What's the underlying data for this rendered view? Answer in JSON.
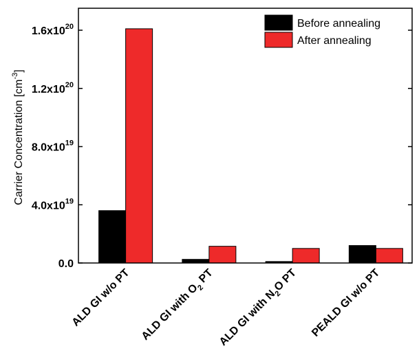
{
  "chart_data": {
    "type": "bar",
    "categories": [
      {
        "main": "ALD GI w/o PT",
        "sub": "",
        "tail": ""
      },
      {
        "main": "ALD GI with O",
        "sub": "2",
        "tail": " PT"
      },
      {
        "main": "ALD GI with N",
        "sub": "2",
        "tail": "O PT"
      },
      {
        "main": "PEALD GI w/o PT",
        "sub": "",
        "tail": ""
      }
    ],
    "series": [
      {
        "name": "Before annealing",
        "color": "#000000",
        "values": [
          3.6e+19,
          2.5e+18,
          1e+18,
          1.2e+19
        ]
      },
      {
        "name": "After annealing",
        "color": "#ee2a2a",
        "values": [
          1.61e+20,
          1.15e+19,
          1e+19,
          1e+19
        ]
      }
    ],
    "ylabel": {
      "main": "Carrier Concentration [cm",
      "sup": "-3",
      "tail": "]"
    },
    "ylim": [
      0,
      1.6e+20
    ],
    "yticks": [
      {
        "value": 0,
        "mantissa": "0.0",
        "exp": ""
      },
      {
        "value": 4e+19,
        "mantissa": "4.0x10",
        "exp": "19"
      },
      {
        "value": 8e+19,
        "mantissa": "8.0x10",
        "exp": "19"
      },
      {
        "value": 1.2e+20,
        "mantissa": "1.2x10",
        "exp": "20"
      },
      {
        "value": 1.6e+20,
        "mantissa": "1.6x10",
        "exp": "20"
      }
    ],
    "legend_position": "top-right",
    "grid": false
  }
}
